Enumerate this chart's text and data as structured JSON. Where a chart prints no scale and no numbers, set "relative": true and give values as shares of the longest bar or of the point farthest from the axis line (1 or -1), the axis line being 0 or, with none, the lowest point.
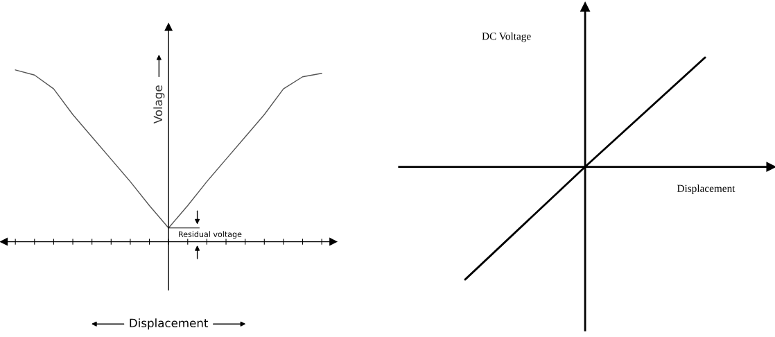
{
  "chart_data": [
    {
      "type": "line",
      "relative": true,
      "color": "#555555",
      "xlabel": "Displacement",
      "ylabel": "Volage",
      "annotations": [
        "Residual voltage"
      ],
      "categories": [
        null,
        null,
        null,
        null,
        null,
        null,
        null,
        null,
        null,
        null,
        null,
        null,
        null,
        null,
        null,
        null,
        null
      ],
      "values": [
        1.0,
        0.97,
        0.89,
        0.74,
        0.61,
        0.48,
        0.35,
        0.21,
        0.08,
        0.21,
        0.35,
        0.48,
        0.61,
        0.74,
        0.89,
        0.96,
        0.98
      ]
    },
    {
      "type": "line",
      "relative": true,
      "color": "#000000",
      "xlabel": "Displacement",
      "ylabel": "DC Voltage",
      "categories": [
        null,
        null,
        null
      ],
      "values": [
        -1,
        0,
        0.97
      ]
    }
  ]
}
